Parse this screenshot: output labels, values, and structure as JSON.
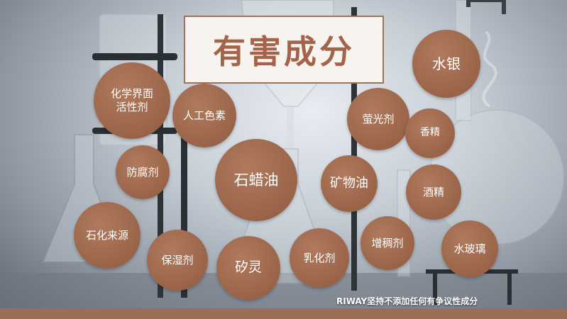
{
  "title": "有害成分",
  "ingredients": {
    "surfactant": "化学界面\n活性剂",
    "artificial_color": "人工色素",
    "preservative": "防腐剂",
    "paraffin_oil": "石蜡油",
    "mineral_oil": "矿物油",
    "fluorescent_agent": "萤光剂",
    "mercury": "水银",
    "fragrance": "香精",
    "alcohol": "酒精",
    "petrochemical_source": "石化来源",
    "humectant": "保湿剂",
    "silicone": "矽灵",
    "emulsifier": "乳化剂",
    "thickener": "增稠剂",
    "water_glass": "水玻璃"
  },
  "slogan": "RIWAY坚持不添加任何有争议性成分",
  "colors": {
    "bubble": "#9a6449",
    "title_text": "#a4644a",
    "bottom_bar": "#9a6f57"
  }
}
